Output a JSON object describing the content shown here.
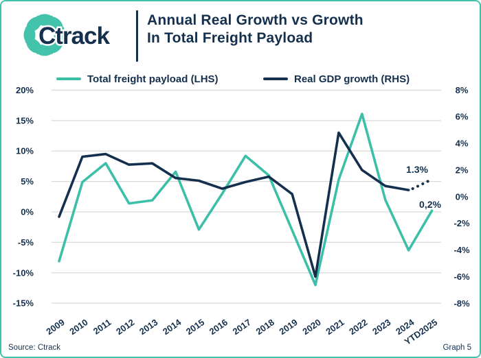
{
  "header": {
    "logo_text": "Ctrack",
    "title_line1": "Annual Real Growth vs Growth",
    "title_line2": "In Total Freight Payload"
  },
  "legend": {
    "items": [
      {
        "label": "Total freight payload (LHS)",
        "color": "#3CBFA8"
      },
      {
        "label": "Real GDP growth (RHS)",
        "color": "#14304E"
      }
    ]
  },
  "footer": {
    "source": "Source: Ctrack",
    "graph_label": "Graph 5"
  },
  "colors": {
    "teal": "#3CBFA8",
    "navy": "#14304E",
    "grid": "#D9D9D9",
    "border": "#40C2AB"
  },
  "chart_data": {
    "type": "line",
    "title": "Annual Real Growth vs Growth In Total Freight Payload",
    "grid": true,
    "grid_color": "#D9D9D9",
    "categories": [
      "2009",
      "2010",
      "2011",
      "2012",
      "2013",
      "2014",
      "2015",
      "2016",
      "2017",
      "2018",
      "2019",
      "2020",
      "2021",
      "2022",
      "2023",
      "2024",
      "YTD2025"
    ],
    "left_axis": {
      "label": "Total freight payload (LHS)",
      "min": -15,
      "max": 20,
      "ticks": [
        20,
        15,
        10,
        5,
        0,
        -5,
        -10,
        -15
      ],
      "unit": "%"
    },
    "right_axis": {
      "label": "Real GDP growth (RHS)",
      "min": -8,
      "max": 8,
      "ticks": [
        8,
        6,
        4,
        2,
        0,
        -2,
        -4,
        -6,
        -8
      ],
      "unit": "%"
    },
    "series": [
      {
        "name": "Total freight payload (LHS)",
        "axis": "LHS",
        "color": "#3CBFA8",
        "style": "solid",
        "values": [
          -8.1,
          4.9,
          8.0,
          1.4,
          1.9,
          6.6,
          -2.9,
          3.0,
          9.2,
          6.0,
          -3.0,
          -12.0,
          5.3,
          16.1,
          2.0,
          -6.3,
          0.2
        ]
      },
      {
        "name": "Real GDP growth (RHS)",
        "axis": "RHS",
        "color": "#14304E",
        "style": "solid-then-dotted",
        "dotted_from_index": 15,
        "values": [
          -1.5,
          3.0,
          3.2,
          2.4,
          2.5,
          1.4,
          1.2,
          0.6,
          1.1,
          1.5,
          0.2,
          -6.0,
          4.8,
          2.0,
          0.8,
          0.5,
          1.3
        ]
      }
    ],
    "annotations": [
      {
        "text": "1.3%",
        "series": "Real GDP growth (RHS)",
        "category": "YTD2025",
        "x": 605,
        "y": 250
      },
      {
        "text": "0,2%",
        "series": "Total freight payload (LHS)",
        "category": "YTD2025",
        "x": 624,
        "y": 301
      }
    ]
  }
}
